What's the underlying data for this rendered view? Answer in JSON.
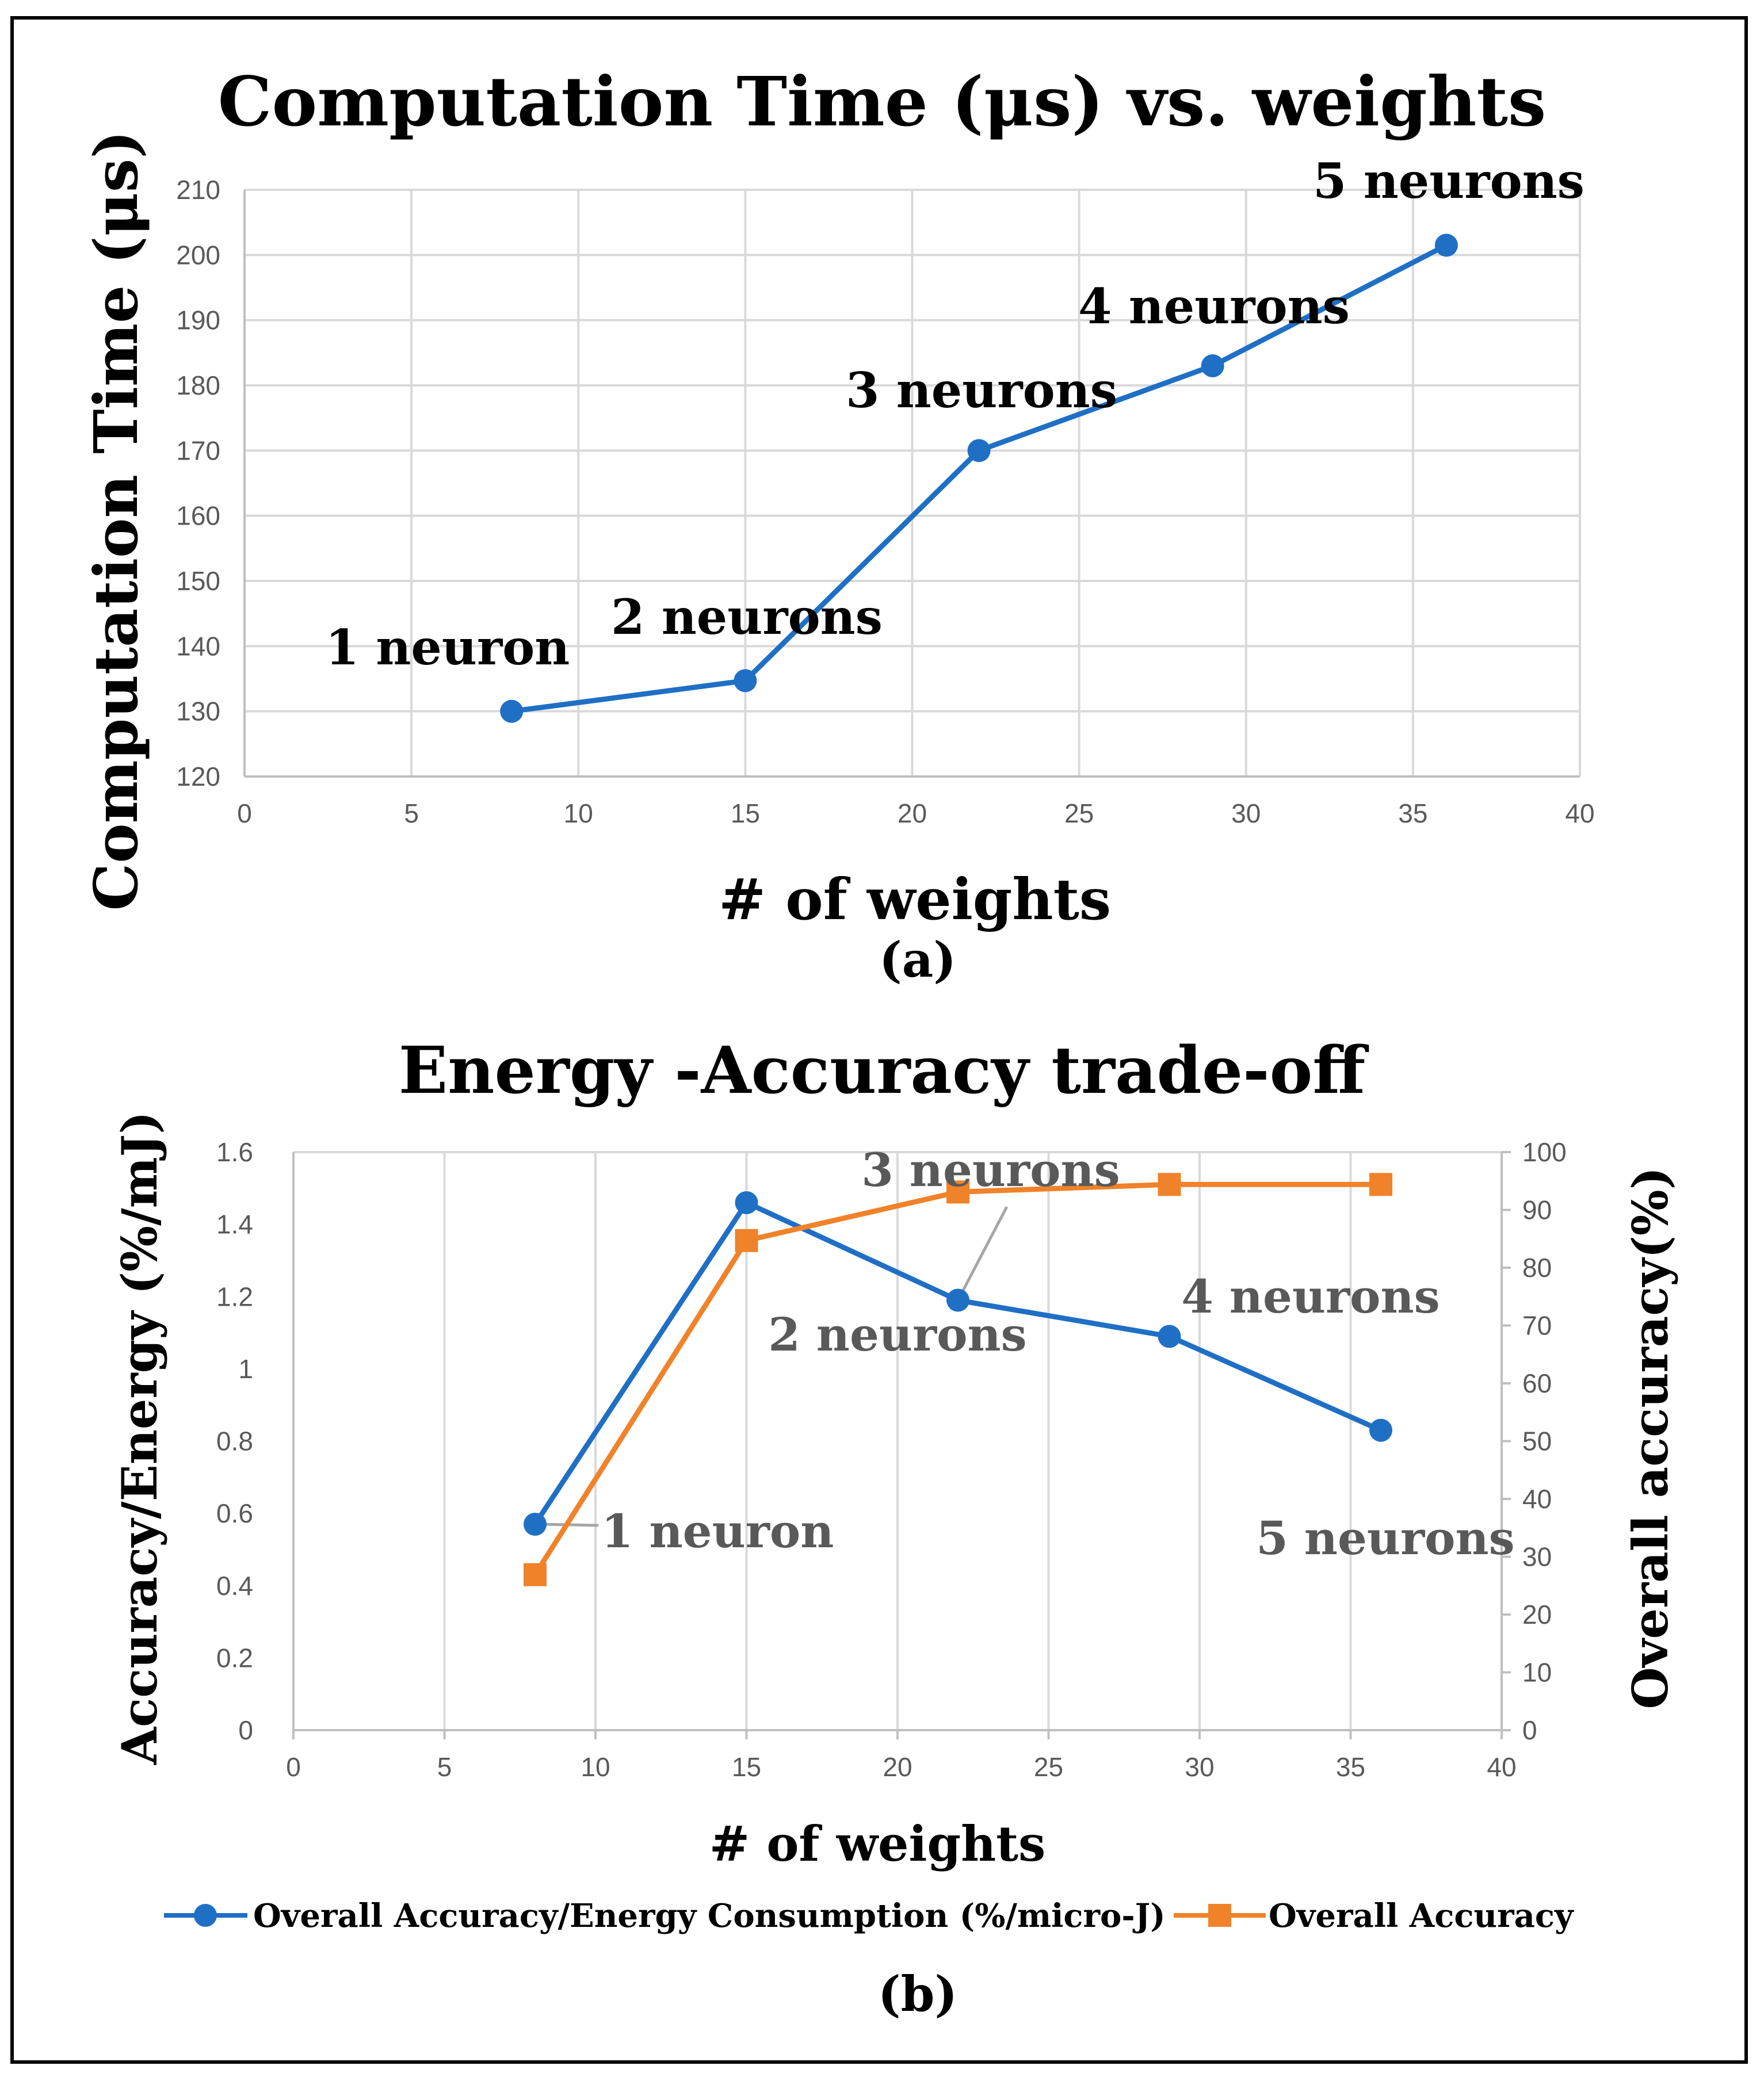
{
  "chart_data": [
    {
      "id": "a",
      "type": "line",
      "title": "Computation Time (μs) vs. weights",
      "xlabel": "# of weights",
      "ylabel": "Computation Time (μs)",
      "caption": "(a)",
      "xlim": [
        0,
        40
      ],
      "ylim": [
        120,
        210
      ],
      "x_ticks": [
        0,
        5,
        10,
        15,
        20,
        25,
        30,
        35,
        40
      ],
      "y_ticks": [
        120,
        130,
        140,
        150,
        160,
        170,
        180,
        190,
        200,
        210
      ],
      "series": [
        {
          "name": "Computation Time",
          "color": "#1f6fc5",
          "x": [
            8,
            15,
            22,
            29,
            36
          ],
          "values": [
            130,
            134.7,
            170,
            183,
            201.5
          ]
        }
      ],
      "annotations": [
        "1 neuron",
        "2 neurons",
        "3 neurons",
        "4 neurons",
        "5 neurons"
      ]
    },
    {
      "id": "b",
      "type": "line",
      "title": "Energy  -Accuracy trade-off",
      "xlabel": "# of weights",
      "ylabel": "Accuracy/Energy (%/mJ)",
      "y2label": "Overall accuracy(%)",
      "caption": "(b)",
      "xlim": [
        0,
        40
      ],
      "ylim": [
        0,
        1.6
      ],
      "y2lim": [
        0,
        100
      ],
      "x_ticks": [
        0,
        5,
        10,
        15,
        20,
        25,
        30,
        35,
        40
      ],
      "y_ticks": [
        "0",
        "0.2",
        "0.4",
        "0.6",
        "0.8",
        "1",
        "1.2",
        "1.4",
        "1.6"
      ],
      "y2_ticks": [
        0,
        10,
        20,
        30,
        40,
        50,
        60,
        70,
        80,
        90,
        100
      ],
      "series": [
        {
          "name": "Overall Accuracy/Energy Consumption (%/micro-J)",
          "axis": "left",
          "marker": "circle",
          "color": "#1f6fc5",
          "x": [
            8,
            15,
            22,
            29,
            36
          ],
          "values": [
            0.57,
            1.46,
            1.19,
            1.09,
            0.83
          ]
        },
        {
          "name": "Overall Accuracy",
          "axis": "right",
          "marker": "square",
          "color": "#f0822a",
          "x": [
            8,
            15,
            22,
            29,
            36
          ],
          "values": [
            26.9,
            84.7,
            93.1,
            94.4,
            94.4
          ]
        }
      ],
      "annotations": [
        "1 neuron",
        "2 neurons",
        "3 neurons",
        "4 neurons",
        "5 neurons"
      ],
      "legend_position": "bottom"
    }
  ]
}
